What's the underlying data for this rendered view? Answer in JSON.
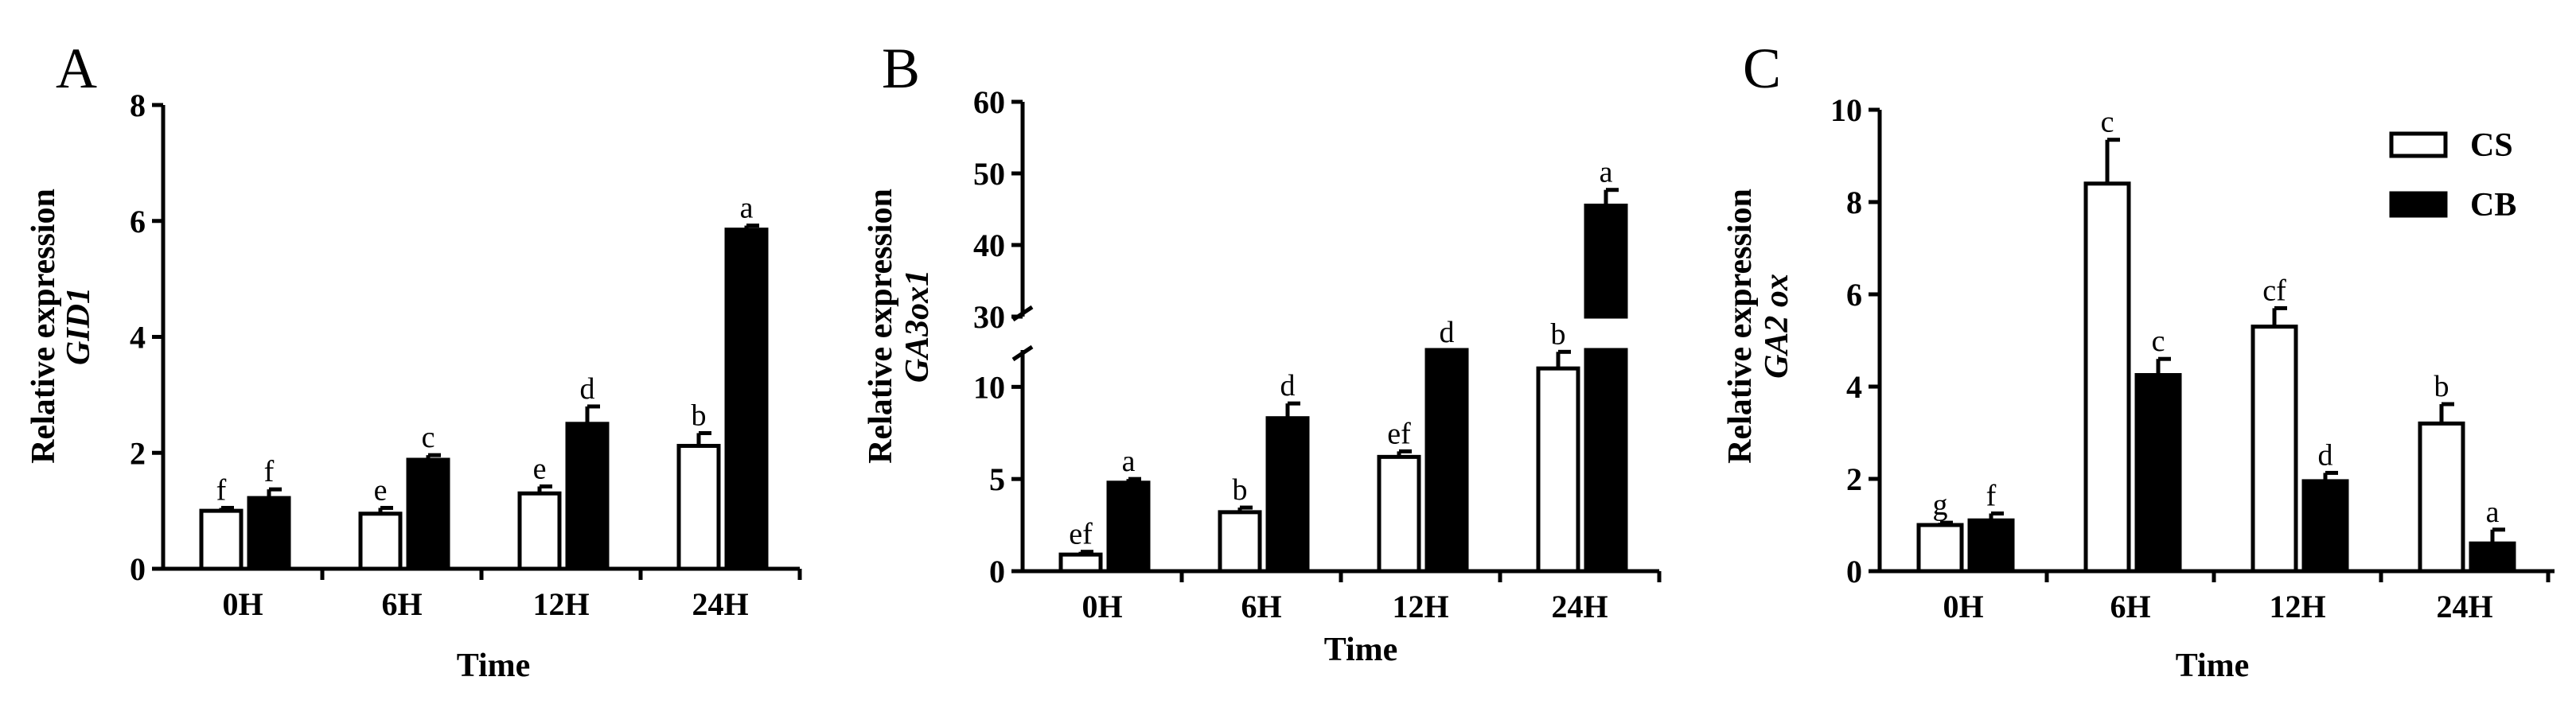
{
  "legend": {
    "items": [
      {
        "label": "CS",
        "fill": "#ffffff"
      },
      {
        "label": "CB",
        "fill": "#000000"
      }
    ],
    "placement": "top-right of panel C"
  },
  "colors": {
    "cs_fill": "#ffffff",
    "cb_fill": "#000000",
    "outline": "#000000"
  },
  "chart_data": [
    {
      "panel": "A",
      "type": "bar",
      "ylabel": "Relative expression",
      "gene": "GID1",
      "xlabel": "Time",
      "categories": [
        "0H",
        "6H",
        "12H",
        "24H"
      ],
      "ylim": [
        0,
        8
      ],
      "yticks": [
        0,
        2,
        4,
        6,
        8
      ],
      "series": [
        {
          "name": "CS",
          "values": [
            1.0,
            0.95,
            1.3,
            2.12
          ],
          "errors": [
            0.05,
            0.1,
            0.12,
            0.22
          ],
          "letters": [
            "f",
            "e",
            "e",
            "b"
          ]
        },
        {
          "name": "CB",
          "values": [
            1.22,
            1.88,
            2.5,
            5.85
          ],
          "errors": [
            0.15,
            0.08,
            0.3,
            0.07
          ],
          "letters": [
            "f",
            "c",
            "d",
            "a"
          ]
        }
      ]
    },
    {
      "panel": "B",
      "type": "bar",
      "ylabel": "Relative expression",
      "gene": "GA3ox1",
      "xlabel": "Time",
      "categories": [
        "0H",
        "6H",
        "12H",
        "24H"
      ],
      "y_axis_break": {
        "lower": [
          0,
          12
        ],
        "upper": [
          30,
          60
        ]
      },
      "yticks": [
        0,
        5,
        10,
        30,
        40,
        50,
        60
      ],
      "series": [
        {
          "name": "CS",
          "values": [
            0.9,
            3.2,
            6.2,
            11.0
          ],
          "errors": [
            0.15,
            0.25,
            0.3,
            0.9
          ],
          "letters": [
            "ef",
            "b",
            "ef",
            "b"
          ]
        },
        {
          "name": "CB",
          "values": [
            4.8,
            8.3,
            12.0,
            45.5
          ],
          "errors": [
            0.2,
            0.8,
            0.0,
            2.2
          ],
          "letters": [
            "a",
            "d",
            "d",
            "a"
          ]
        }
      ]
    },
    {
      "panel": "C",
      "type": "bar",
      "ylabel": "Relative expression",
      "gene": "GA2 ox",
      "xlabel": "Time",
      "categories": [
        "0H",
        "6H",
        "12H",
        "24H"
      ],
      "ylim": [
        0,
        10
      ],
      "yticks": [
        0,
        2,
        4,
        6,
        8,
        10
      ],
      "series": [
        {
          "name": "CS",
          "values": [
            1.0,
            8.4,
            5.3,
            3.2
          ],
          "errors": [
            0.05,
            0.95,
            0.4,
            0.42
          ],
          "letters": [
            "g",
            "c",
            "cf",
            "b"
          ]
        },
        {
          "name": "CB",
          "values": [
            1.1,
            4.25,
            1.95,
            0.6
          ],
          "errors": [
            0.15,
            0.35,
            0.18,
            0.3
          ],
          "letters": [
            "f",
            "c",
            "d",
            "a"
          ]
        }
      ]
    }
  ]
}
